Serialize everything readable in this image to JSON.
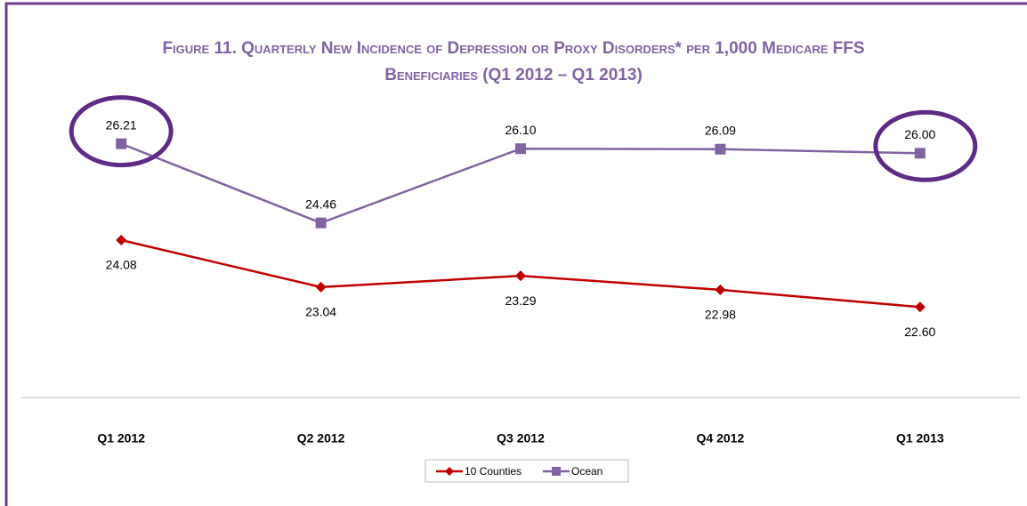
{
  "chart_data": {
    "type": "line",
    "title": "Figure 11. Quarterly New Incidence of Depression or Proxy Disorders* per 1,000 Medicare FFS Beneficiaries (Q1 2012 – Q1 2013)",
    "categories": [
      "Q1 2012",
      "Q2 2012",
      "Q3 2012",
      "Q4 2012",
      "Q1 2013"
    ],
    "series": [
      {
        "name": "10 Counties",
        "color": "#c00000",
        "values": [
          24.08,
          23.04,
          23.29,
          22.98,
          22.6
        ],
        "value_labels": [
          "24.08",
          "23.04",
          "23.29",
          "22.98",
          "22.60"
        ]
      },
      {
        "name": "Ocean",
        "color": "#8064a2",
        "values": [
          26.21,
          24.46,
          26.1,
          26.09,
          26
        ],
        "value_labels": [
          "26.21",
          "24.46",
          "26.10",
          "26.09",
          "26.00"
        ]
      }
    ],
    "ylim": [
      20.6,
      27.5
    ]
  }
}
